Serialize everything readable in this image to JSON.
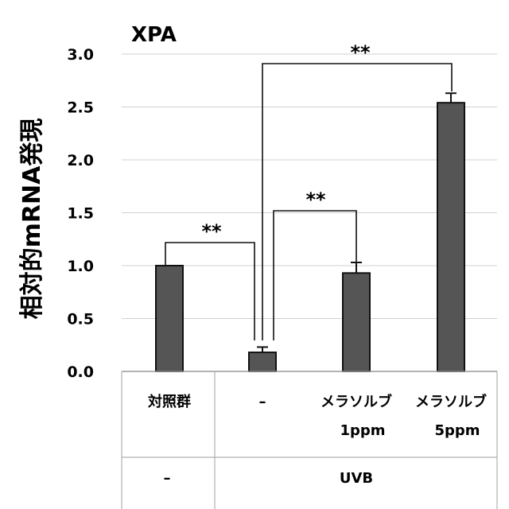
{
  "chart_data": {
    "type": "bar",
    "title": "XPA",
    "ylabel": "相対的mRNA発現",
    "xlabel": "",
    "ylim": [
      0,
      3.0
    ],
    "yticks": [
      "0.0",
      "0.5",
      "1.0",
      "1.5",
      "2.0",
      "2.5",
      "3.0"
    ],
    "grid": true,
    "categories": [
      {
        "line1": "対照群",
        "line2": ""
      },
      {
        "line1": "–",
        "line2": ""
      },
      {
        "line1": "メラソルブ",
        "line2": "1ppm"
      },
      {
        "line1": "メラソルブ",
        "line2": "5ppm"
      }
    ],
    "values": [
      1.0,
      0.18,
      0.93,
      2.54
    ],
    "errors": [
      0.0,
      0.05,
      0.1,
      0.09
    ],
    "treatment_row": [
      {
        "label": "–",
        "span": "control"
      },
      {
        "label": "UVB",
        "span": "uvb"
      }
    ],
    "significance": [
      {
        "from": 0,
        "to": 1,
        "label": "**"
      },
      {
        "from": 1,
        "to": 2,
        "label": "**"
      },
      {
        "from": 1,
        "to": 3,
        "label": "**"
      }
    ],
    "colors": {
      "bar": "#555555",
      "bar_edge": "#111111",
      "grid": "#d0d0d0"
    }
  }
}
